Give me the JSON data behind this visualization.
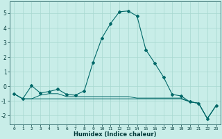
{
  "xlabel": "Humidex (Indice chaleur)",
  "background_color": "#c8ede8",
  "grid_color": "#a8d8d0",
  "line_color": "#006868",
  "xlim": [
    -0.5,
    23.5
  ],
  "ylim": [
    -2.6,
    5.8
  ],
  "yticks": [
    -2,
    -1,
    0,
    1,
    2,
    3,
    4,
    5
  ],
  "xticks": [
    0,
    1,
    2,
    3,
    4,
    5,
    6,
    7,
    8,
    9,
    10,
    11,
    12,
    13,
    14,
    15,
    16,
    17,
    18,
    19,
    20,
    21,
    22,
    23
  ],
  "series1": [
    [
      0,
      -0.5
    ],
    [
      1,
      -0.85
    ],
    [
      2,
      0.05
    ],
    [
      3,
      -0.45
    ],
    [
      4,
      -0.35
    ],
    [
      5,
      -0.2
    ],
    [
      6,
      -0.55
    ],
    [
      7,
      -0.6
    ],
    [
      8,
      -0.3
    ],
    [
      9,
      1.65
    ],
    [
      10,
      3.3
    ],
    [
      11,
      4.3
    ],
    [
      12,
      5.1
    ],
    [
      13,
      5.15
    ],
    [
      14,
      4.8
    ],
    [
      15,
      2.5
    ],
    [
      16,
      1.6
    ],
    [
      17,
      0.65
    ],
    [
      18,
      -0.55
    ],
    [
      19,
      -0.65
    ],
    [
      20,
      -1.05
    ],
    [
      21,
      -1.15
    ],
    [
      22,
      -2.2
    ],
    [
      23,
      -1.3
    ]
  ],
  "series2": [
    [
      0,
      -0.5
    ],
    [
      1,
      -0.85
    ],
    [
      2,
      -0.85
    ],
    [
      3,
      -0.85
    ],
    [
      4,
      -0.85
    ],
    [
      5,
      -0.85
    ],
    [
      6,
      -0.85
    ],
    [
      7,
      -0.85
    ],
    [
      8,
      -0.85
    ],
    [
      9,
      -0.85
    ],
    [
      10,
      -0.85
    ],
    [
      11,
      -0.85
    ],
    [
      12,
      -0.85
    ],
    [
      13,
      -0.85
    ],
    [
      14,
      -0.85
    ],
    [
      15,
      -0.85
    ],
    [
      16,
      -0.85
    ],
    [
      17,
      -0.85
    ],
    [
      18,
      -0.85
    ],
    [
      19,
      -0.85
    ],
    [
      20,
      -1.05
    ],
    [
      21,
      -1.15
    ],
    [
      22,
      -2.2
    ],
    [
      23,
      -1.3
    ]
  ],
  "series3": [
    [
      0,
      -0.5
    ],
    [
      1,
      -0.85
    ],
    [
      2,
      -0.85
    ],
    [
      3,
      -0.6
    ],
    [
      4,
      -0.5
    ],
    [
      5,
      -0.5
    ],
    [
      6,
      -0.7
    ],
    [
      7,
      -0.7
    ],
    [
      8,
      -0.7
    ],
    [
      9,
      -0.7
    ],
    [
      10,
      -0.7
    ],
    [
      11,
      -0.7
    ],
    [
      12,
      -0.7
    ],
    [
      13,
      -0.7
    ],
    [
      14,
      -0.8
    ],
    [
      15,
      -0.8
    ],
    [
      16,
      -0.8
    ],
    [
      17,
      -0.8
    ],
    [
      18,
      -0.8
    ],
    [
      19,
      -0.8
    ],
    [
      20,
      -1.05
    ],
    [
      21,
      -1.15
    ],
    [
      22,
      -2.2
    ],
    [
      23,
      -1.3
    ]
  ]
}
